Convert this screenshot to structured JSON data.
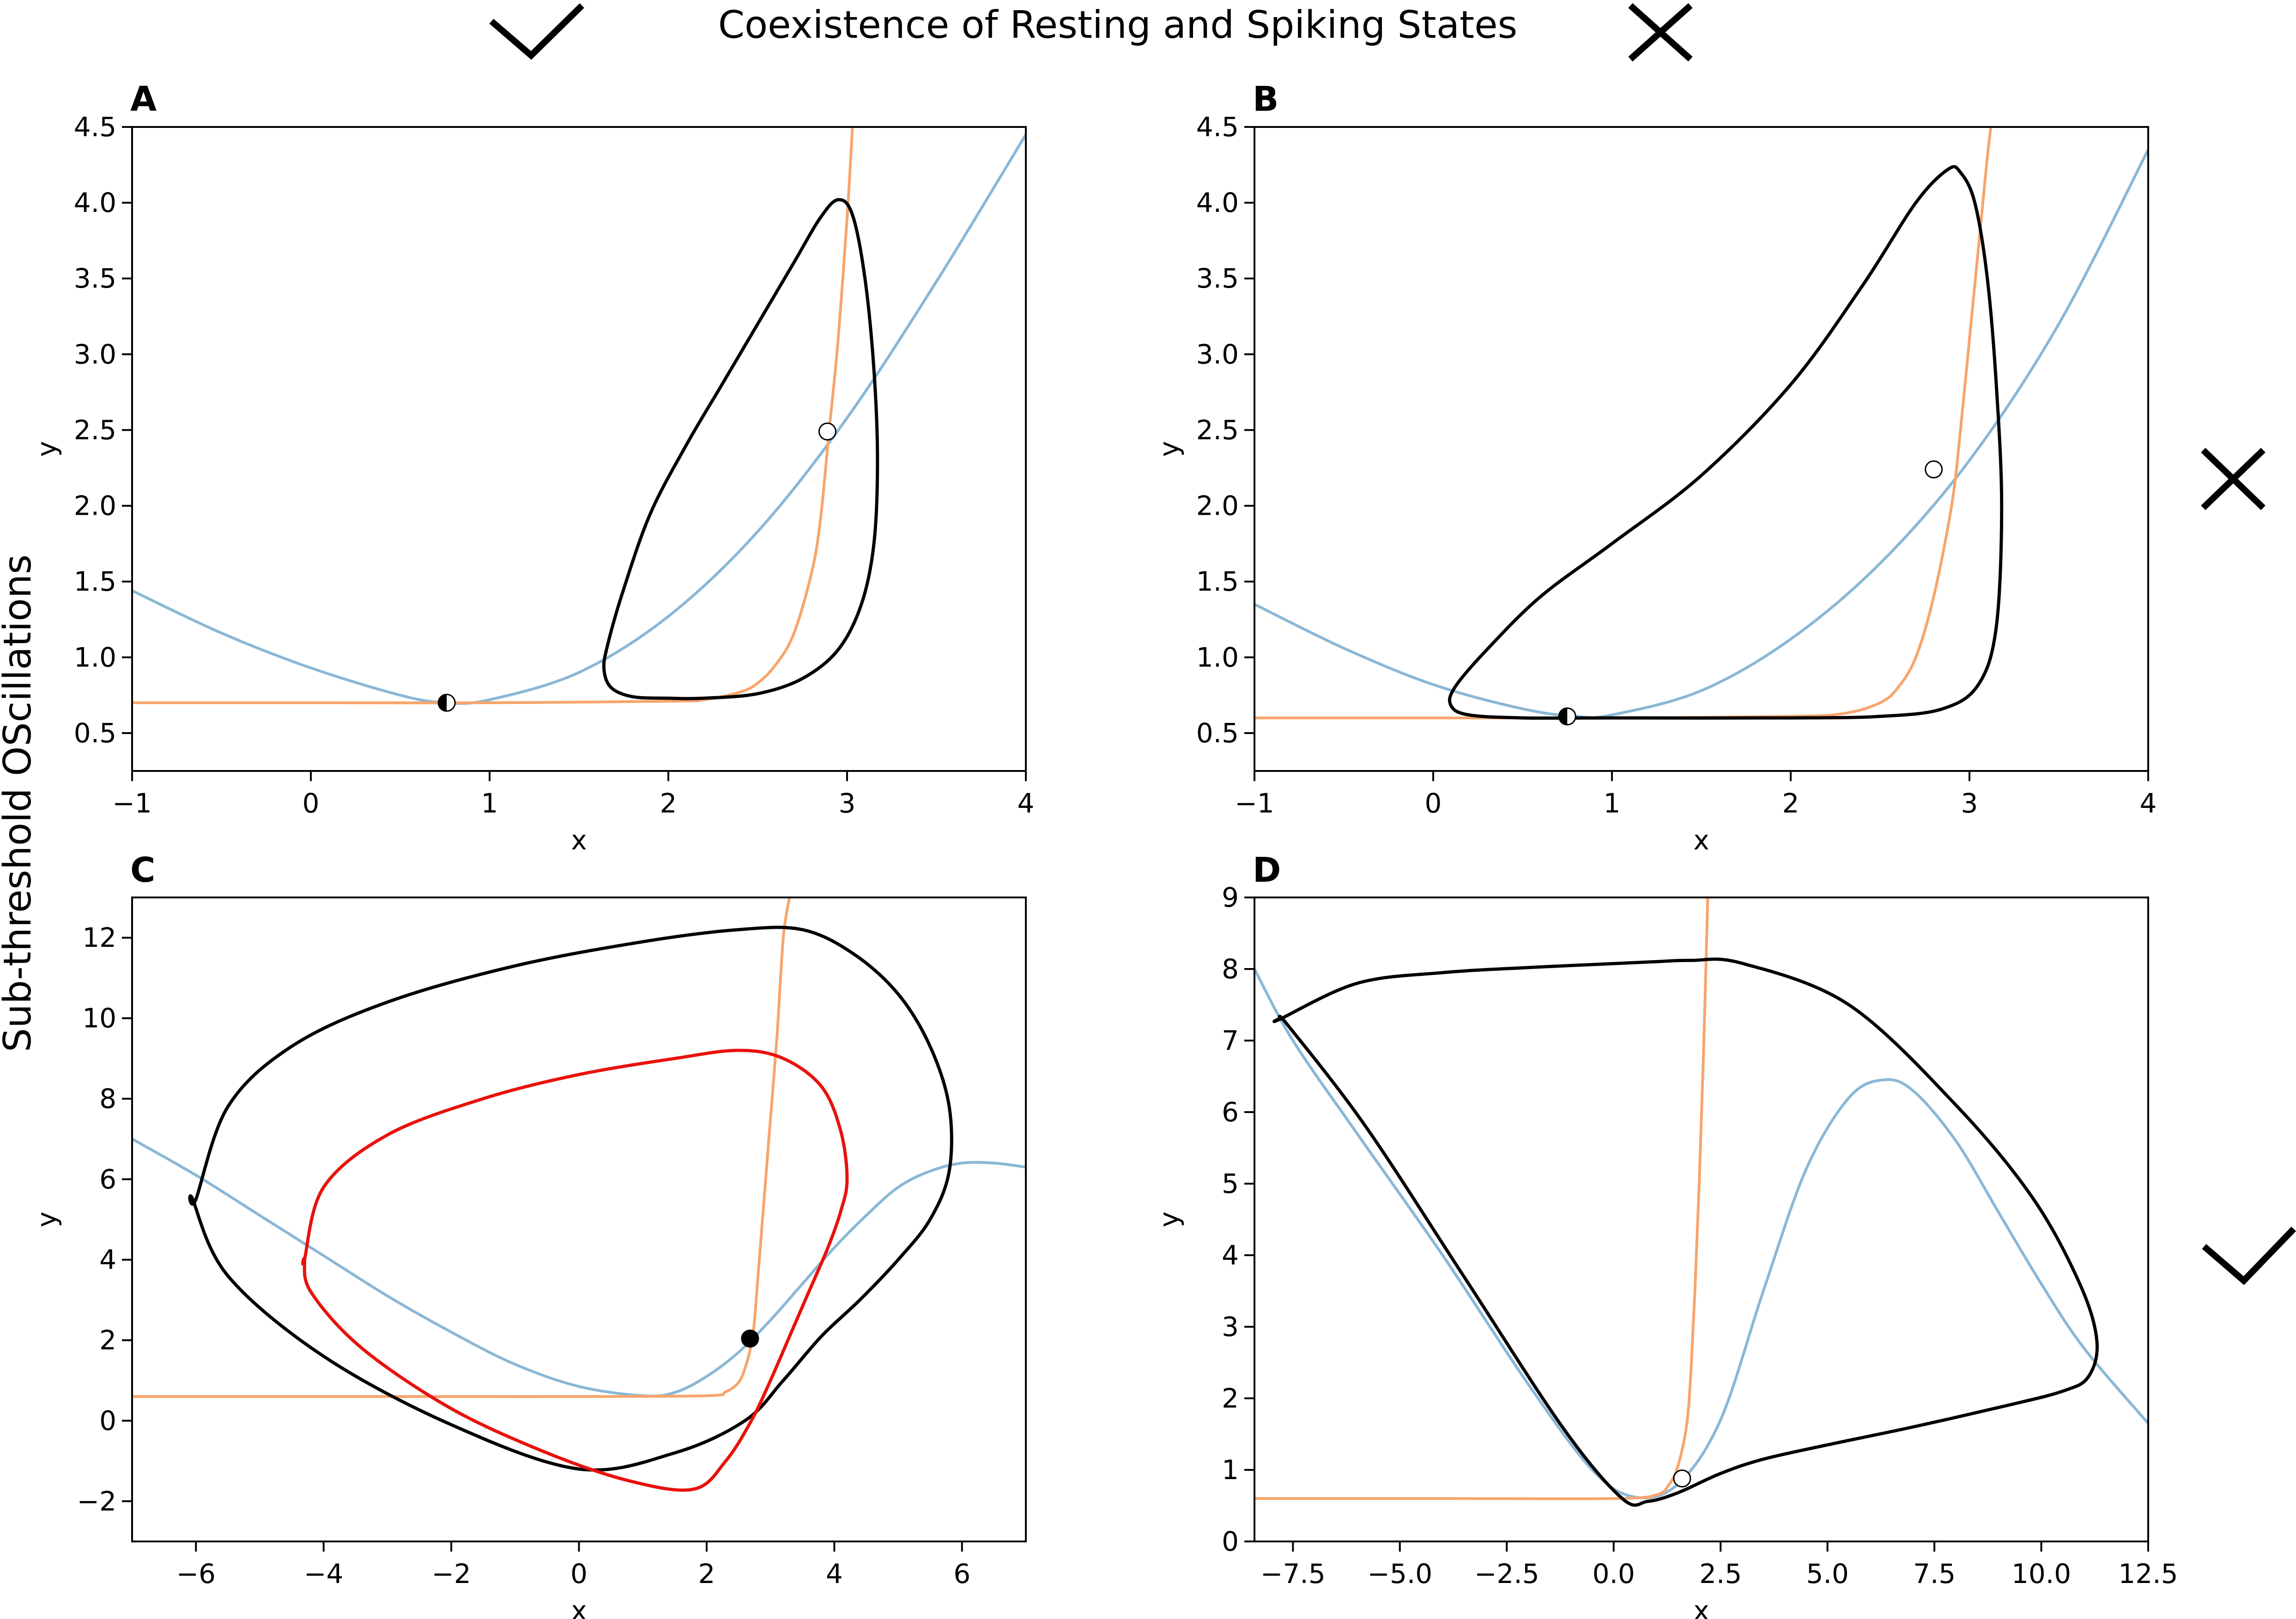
{
  "figure": {
    "title": "Coexistence of Resting and Spiking States",
    "row_label": "Sub-threshold OScillations",
    "title_marks": [
      "check-icon",
      "cross-icon"
    ],
    "row_marks": [
      "cross-icon",
      "check-icon"
    ]
  },
  "colors": {
    "nullcline_x": "#8ab7d6",
    "nullcline_y": "#f7a56b",
    "orbit": "#000000",
    "orbit_red": "#e8120c"
  },
  "chart_data": [
    {
      "panel": "A",
      "type": "line",
      "xlabel": "x",
      "ylabel": "y",
      "xlim": [
        -1,
        4
      ],
      "ylim": [
        0.25,
        4.5
      ],
      "xticks": [
        "−1",
        "0",
        "1",
        "2",
        "3",
        "4"
      ],
      "yticks": [
        "0.5",
        "1.0",
        "1.5",
        "2.0",
        "2.5",
        "3.0",
        "3.5",
        "4.0",
        "4.5"
      ],
      "series": [
        {
          "role": "x-nullcline",
          "color": "#8ab7d6",
          "x": [
            -1,
            -0.5,
            0,
            0.5,
            0.76,
            1,
            1.5,
            2,
            2.5,
            3,
            3.5,
            4
          ],
          "y": [
            1.44,
            1.16,
            0.93,
            0.75,
            0.7,
            0.72,
            0.9,
            1.27,
            1.83,
            2.58,
            3.48,
            4.45
          ]
        },
        {
          "role": "y-nullcline",
          "color": "#f7a56b",
          "x": [
            -1,
            0,
            1,
            2,
            2.2,
            2.4,
            2.5,
            2.6,
            2.7,
            2.8,
            2.85,
            2.9,
            2.95,
            3.0,
            3.03
          ],
          "y": [
            0.7,
            0.7,
            0.7,
            0.71,
            0.72,
            0.77,
            0.83,
            0.95,
            1.15,
            1.55,
            1.9,
            2.5,
            3.1,
            3.9,
            4.5
          ]
        },
        {
          "role": "limit-cycle",
          "color": "#000000",
          "closed": true,
          "x": [
            2.2,
            2.5,
            2.75,
            2.95,
            3.08,
            3.15,
            3.17,
            3.15,
            3.1,
            3.03,
            2.95,
            2.85,
            2.7,
            2.5,
            2.3,
            2.1,
            1.9,
            1.75,
            1.66,
            1.64,
            1.68,
            1.8,
            2.0
          ],
          "y": [
            0.73,
            0.76,
            0.86,
            1.05,
            1.35,
            1.75,
            2.3,
            2.9,
            3.5,
            3.92,
            4.02,
            3.9,
            3.6,
            3.2,
            2.8,
            2.4,
            1.95,
            1.45,
            1.08,
            0.92,
            0.8,
            0.74,
            0.73
          ]
        }
      ],
      "equilibria": [
        {
          "x": 0.76,
          "y": 0.7,
          "type": "half-filled"
        },
        {
          "x": 2.89,
          "y": 2.49,
          "type": "open"
        }
      ]
    },
    {
      "panel": "B",
      "type": "line",
      "xlabel": "x",
      "ylabel": "y",
      "xlim": [
        -1,
        4
      ],
      "ylim": [
        0.25,
        4.5
      ],
      "xticks": [
        "−1",
        "0",
        "1",
        "2",
        "3",
        "4"
      ],
      "yticks": [
        "0.5",
        "1.0",
        "1.5",
        "2.0",
        "2.5",
        "3.0",
        "3.5",
        "4.0",
        "4.5"
      ],
      "series": [
        {
          "role": "x-nullcline",
          "color": "#8ab7d6",
          "x": [
            -1,
            -0.5,
            0,
            0.5,
            0.8,
            1,
            1.5,
            2,
            2.5,
            3,
            3.5,
            4
          ],
          "y": [
            1.35,
            1.06,
            0.82,
            0.66,
            0.61,
            0.62,
            0.78,
            1.12,
            1.62,
            2.3,
            3.2,
            4.35
          ]
        },
        {
          "role": "y-nullcline",
          "color": "#f7a56b",
          "x": [
            -1,
            0,
            1,
            2,
            2.3,
            2.5,
            2.6,
            2.7,
            2.8,
            2.9,
            2.95,
            3.0,
            3.05,
            3.1,
            3.12
          ],
          "y": [
            0.6,
            0.6,
            0.6,
            0.61,
            0.63,
            0.7,
            0.8,
            1.0,
            1.4,
            2.0,
            2.5,
            3.1,
            3.7,
            4.3,
            4.5
          ]
        },
        {
          "role": "limit-cycle",
          "color": "#000000",
          "closed": true,
          "x": [
            1.0,
            2.0,
            2.5,
            2.85,
            3.05,
            3.15,
            3.18,
            3.15,
            3.1,
            3.03,
            2.95,
            2.88,
            2.7,
            2.4,
            2.0,
            1.5,
            1.0,
            0.6,
            0.3,
            0.12,
            0.1,
            0.2,
            0.5
          ],
          "y": [
            0.6,
            0.6,
            0.61,
            0.66,
            0.82,
            1.2,
            2.0,
            2.8,
            3.5,
            4.0,
            4.2,
            4.22,
            4.0,
            3.45,
            2.8,
            2.2,
            1.75,
            1.4,
            1.05,
            0.8,
            0.68,
            0.62,
            0.6
          ]
        }
      ],
      "equilibria": [
        {
          "x": 0.75,
          "y": 0.61,
          "type": "half-filled"
        },
        {
          "x": 2.8,
          "y": 2.24,
          "type": "open"
        }
      ]
    },
    {
      "panel": "C",
      "type": "line",
      "xlabel": "x",
      "ylabel": "y",
      "xlim": [
        -7,
        7
      ],
      "ylim": [
        -3,
        13
      ],
      "xticks": [
        "−6",
        "−4",
        "−2",
        "0",
        "2",
        "4",
        "6"
      ],
      "yticks": [
        "−2",
        "0",
        "2",
        "4",
        "6",
        "8",
        "10",
        "12"
      ],
      "series": [
        {
          "role": "x-nullcline",
          "color": "#8ab7d6",
          "x": [
            -7,
            -6,
            -5,
            -4,
            -3,
            -2,
            -1,
            0,
            1,
            1.5,
            2,
            2.5,
            3,
            3.5,
            4,
            4.5,
            5,
            5.5,
            6,
            6.5,
            7
          ],
          "y": [
            7.0,
            6.1,
            5.1,
            4.1,
            3.1,
            2.2,
            1.4,
            0.85,
            0.62,
            0.7,
            1.1,
            1.7,
            2.5,
            3.4,
            4.3,
            5.1,
            5.8,
            6.2,
            6.4,
            6.4,
            6.3
          ]
        },
        {
          "role": "y-nullcline",
          "color": "#f7a56b",
          "x": [
            -7,
            -4,
            -2,
            0,
            2,
            2.3,
            2.5,
            2.6,
            2.7,
            2.75,
            2.8,
            2.9,
            3.0,
            3.1,
            3.15,
            3.2,
            3.25,
            3.3
          ],
          "y": [
            0.6,
            0.6,
            0.6,
            0.6,
            0.62,
            0.72,
            0.95,
            1.3,
            1.9,
            2.5,
            3.5,
            5.5,
            7.5,
            9.5,
            10.8,
            12.0,
            12.6,
            13.0
          ]
        },
        {
          "role": "limit-cycle-outer",
          "color": "#000000",
          "closed": true,
          "x": [
            -6.0,
            -5.5,
            -4.5,
            -3.0,
            -1.0,
            1.0,
            2.5,
            3.5,
            4.3,
            5.0,
            5.5,
            5.8,
            5.8,
            5.5,
            5.0,
            4.4,
            3.8,
            3.2,
            2.6,
            1.5,
            0.0,
            -2.0,
            -4.0,
            -5.5,
            -6.05
          ],
          "y": [
            5.5,
            7.8,
            9.3,
            10.4,
            11.3,
            11.9,
            12.2,
            12.2,
            11.6,
            10.6,
            9.3,
            7.8,
            6.2,
            5.0,
            4.0,
            3.0,
            2.1,
            1.0,
            0.0,
            -0.8,
            -1.2,
            -0.1,
            1.6,
            3.6,
            5.5
          ]
        },
        {
          "role": "limit-cycle-inner",
          "color": "#e8120c",
          "closed": true,
          "x": [
            -4.3,
            -4.0,
            -3.0,
            -1.5,
            0.0,
            1.5,
            2.5,
            3.2,
            3.8,
            4.1,
            4.2,
            4.1,
            3.9,
            3.6,
            3.3,
            3.0,
            2.7,
            2.3,
            1.8,
            0.8,
            -0.5,
            -2.0,
            -3.4,
            -4.2,
            -4.3
          ],
          "y": [
            4.0,
            5.8,
            7.1,
            8.0,
            8.6,
            9.0,
            9.2,
            9.0,
            8.3,
            7.2,
            6.0,
            5.2,
            4.3,
            3.2,
            2.1,
            1.0,
            0.0,
            -1.0,
            -1.7,
            -1.5,
            -0.8,
            0.3,
            1.8,
            3.2,
            4.0
          ]
        }
      ],
      "equilibria": [
        {
          "x": 2.68,
          "y": 2.04,
          "type": "filled"
        }
      ]
    },
    {
      "panel": "D",
      "type": "line",
      "xlabel": "x",
      "ylabel": "y",
      "xlim": [
        -8.4,
        12.5
      ],
      "ylim": [
        0,
        9
      ],
      "xticks": [
        "−7.5",
        "−5.0",
        "−2.5",
        "0.0",
        "2.5",
        "5.0",
        "7.5",
        "10.0",
        "12.5"
      ],
      "yticks": [
        "0",
        "1",
        "2",
        "3",
        "4",
        "5",
        "6",
        "7",
        "8",
        "9"
      ],
      "series": [
        {
          "role": "x-nullcline",
          "color": "#8ab7d6",
          "x": [
            -8.4,
            -7.5,
            -6.0,
            -4.0,
            -2.0,
            -0.5,
            0.5,
            1.5,
            2.5,
            3.5,
            4.5,
            5.5,
            6.3,
            7.0,
            8.0,
            9.0,
            10.0,
            11.0,
            12.5
          ],
          "y": [
            8.0,
            7.0,
            5.7,
            4.0,
            2.2,
            1.0,
            0.62,
            0.8,
            1.7,
            3.5,
            5.2,
            6.2,
            6.45,
            6.3,
            5.6,
            4.6,
            3.6,
            2.7,
            1.65
          ]
        },
        {
          "role": "y-nullcline",
          "color": "#f7a56b",
          "x": [
            -8.4,
            -4.0,
            0.0,
            1.0,
            1.3,
            1.5,
            1.7,
            1.8,
            1.9,
            2.0,
            2.1,
            2.2
          ],
          "y": [
            0.6,
            0.6,
            0.6,
            0.65,
            0.8,
            1.05,
            1.6,
            2.3,
            3.5,
            5.0,
            6.8,
            9.0
          ]
        },
        {
          "role": "limit-cycle",
          "color": "#000000",
          "closed": true,
          "x": [
            -7.8,
            -6.0,
            -4.0,
            -2.0,
            -0.2,
            0.9,
            1.8,
            3.0,
            5.5,
            8.0,
            9.8,
            10.9,
            11.3,
            11.1,
            10.5,
            9.2,
            7.0,
            5.0,
            3.5,
            2.5,
            1.5,
            0.8,
            0.2,
            -1.2,
            -3.5,
            -5.8,
            -7.6,
            -7.8
          ],
          "y": [
            7.3,
            7.8,
            7.95,
            8.02,
            8.07,
            8.1,
            8.12,
            8.08,
            7.5,
            6.1,
            4.8,
            3.6,
            2.8,
            2.3,
            2.1,
            1.9,
            1.6,
            1.35,
            1.15,
            0.95,
            0.68,
            0.56,
            0.6,
            1.6,
            3.7,
            5.8,
            7.2,
            7.3
          ]
        }
      ],
      "equilibria": [
        {
          "x": 1.6,
          "y": 0.88,
          "type": "open"
        }
      ]
    }
  ]
}
